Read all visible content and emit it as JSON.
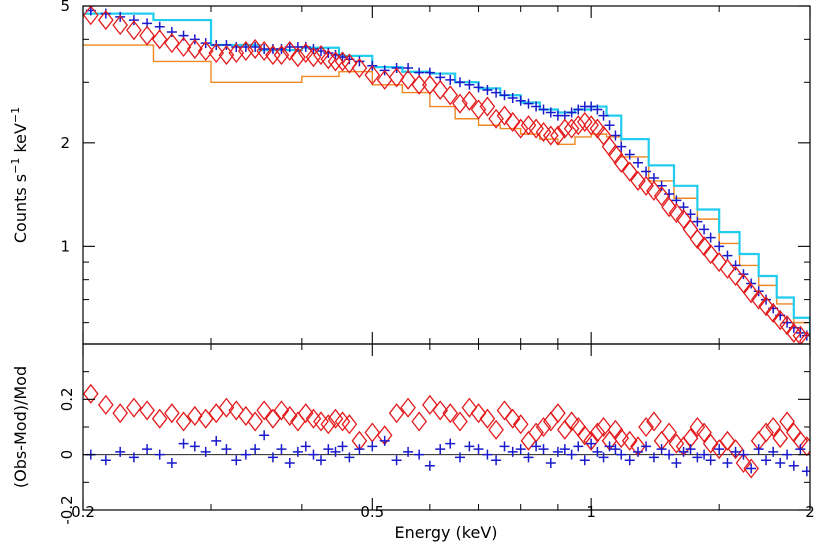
{
  "colors": {
    "data_red": "#e41a1c",
    "data_blue": "#1a1acc",
    "model_cyan": "#22ccee",
    "model_orange": "#ee8822",
    "axes": "#000000"
  },
  "chart_data": [
    {
      "panel": "spectrum",
      "type": "scatter",
      "xscale": "log",
      "yscale": "log",
      "xlim": [
        0.2,
        2.0
      ],
      "ylim": [
        0.52,
        5.0
      ],
      "ylabel": {
        "main": "Counts s",
        "exp1": "−1",
        "mid": " keV",
        "exp2": "−1"
      },
      "ytick_values": [
        1,
        2,
        5
      ],
      "ytick_labels": [
        "1",
        "2",
        "5"
      ],
      "x": [
        0.205,
        0.215,
        0.225,
        0.235,
        0.245,
        0.255,
        0.265,
        0.275,
        0.285,
        0.295,
        0.305,
        0.315,
        0.325,
        0.335,
        0.345,
        0.355,
        0.365,
        0.375,
        0.385,
        0.395,
        0.405,
        0.415,
        0.425,
        0.435,
        0.445,
        0.455,
        0.465,
        0.48,
        0.5,
        0.52,
        0.54,
        0.56,
        0.58,
        0.6,
        0.62,
        0.64,
        0.66,
        0.68,
        0.7,
        0.72,
        0.74,
        0.76,
        0.78,
        0.8,
        0.82,
        0.84,
        0.86,
        0.88,
        0.9,
        0.92,
        0.94,
        0.96,
        0.98,
        1.0,
        1.02,
        1.04,
        1.06,
        1.08,
        1.1,
        1.13,
        1.16,
        1.19,
        1.22,
        1.25,
        1.28,
        1.31,
        1.34,
        1.37,
        1.4,
        1.43,
        1.46,
        1.5,
        1.54,
        1.58,
        1.62,
        1.66,
        1.7,
        1.74,
        1.78,
        1.82,
        1.86,
        1.9,
        1.94,
        1.98
      ],
      "series": [
        {
          "values": [
            4.85,
            4.75,
            4.65,
            4.55,
            4.45,
            4.35,
            4.2,
            4.1,
            4.0,
            3.9,
            3.85,
            3.85,
            3.8,
            3.8,
            3.8,
            3.75,
            3.75,
            3.75,
            3.8,
            3.8,
            3.8,
            3.75,
            3.7,
            3.65,
            3.6,
            3.55,
            3.5,
            3.45,
            3.35,
            3.25,
            3.3,
            3.3,
            3.2,
            3.2,
            3.1,
            3.05,
            3.0,
            2.95,
            2.9,
            2.85,
            2.8,
            2.75,
            2.7,
            2.65,
            2.6,
            2.55,
            2.5,
            2.45,
            2.4,
            2.4,
            2.45,
            2.5,
            2.55,
            2.55,
            2.5,
            2.4,
            2.25,
            2.1,
            1.95,
            1.85,
            1.75,
            1.65,
            1.58,
            1.5,
            1.42,
            1.36,
            1.3,
            1.24,
            1.18,
            1.12,
            1.06,
            1.0,
            0.94,
            0.88,
            0.83,
            0.78,
            0.74,
            0.7,
            0.66,
            0.63,
            0.6,
            0.58,
            0.56,
            0.55
          ],
          "marker": "plus",
          "color_key": "data_blue"
        },
        {
          "values": [
            4.7,
            4.55,
            4.4,
            4.25,
            4.1,
            4.0,
            3.9,
            3.8,
            3.75,
            3.7,
            3.65,
            3.6,
            3.65,
            3.7,
            3.75,
            3.7,
            3.6,
            3.6,
            3.7,
            3.55,
            3.65,
            3.55,
            3.6,
            3.5,
            3.45,
            3.45,
            3.4,
            3.3,
            3.15,
            3.05,
            3.1,
            3.05,
            2.95,
            2.95,
            2.85,
            2.75,
            2.6,
            2.65,
            2.5,
            2.55,
            2.35,
            2.4,
            2.3,
            2.2,
            2.25,
            2.2,
            2.15,
            2.1,
            2.1,
            2.2,
            2.2,
            2.25,
            2.3,
            2.25,
            2.2,
            2.1,
            1.95,
            1.85,
            1.75,
            1.65,
            1.55,
            1.5,
            1.45,
            1.4,
            1.3,
            1.25,
            1.2,
            1.12,
            1.05,
            1.0,
            0.95,
            0.9,
            0.86,
            0.82,
            0.78,
            0.73,
            0.7,
            0.67,
            0.64,
            0.61,
            0.59,
            0.56,
            0.55,
            0.53
          ],
          "marker": "diamond",
          "color_key": "data_red"
        }
      ],
      "model_cyan": [
        [
          0.2,
          4.75
        ],
        [
          0.25,
          4.55
        ],
        [
          0.3,
          3.85
        ],
        [
          0.35,
          3.72
        ],
        [
          0.4,
          3.78
        ],
        [
          0.45,
          3.58
        ],
        [
          0.5,
          3.32
        ],
        [
          0.55,
          3.22
        ],
        [
          0.6,
          3.18
        ],
        [
          0.65,
          3.0
        ],
        [
          0.7,
          2.88
        ],
        [
          0.75,
          2.75
        ],
        [
          0.8,
          2.62
        ],
        [
          0.85,
          2.5
        ],
        [
          0.9,
          2.45
        ],
        [
          0.95,
          2.5
        ],
        [
          1.0,
          2.55
        ],
        [
          1.05,
          2.4
        ],
        [
          1.1,
          2.05
        ],
        [
          1.2,
          1.72
        ],
        [
          1.3,
          1.5
        ],
        [
          1.4,
          1.28
        ],
        [
          1.5,
          1.1
        ],
        [
          1.6,
          0.95
        ],
        [
          1.7,
          0.82
        ],
        [
          1.8,
          0.71
        ],
        [
          1.9,
          0.62
        ],
        [
          2.0,
          0.54
        ]
      ],
      "model_orange": [
        [
          0.2,
          3.85
        ],
        [
          0.25,
          3.45
        ],
        [
          0.3,
          3.0
        ],
        [
          0.35,
          3.0
        ],
        [
          0.4,
          3.12
        ],
        [
          0.45,
          3.22
        ],
        [
          0.5,
          2.95
        ],
        [
          0.55,
          2.8
        ],
        [
          0.6,
          2.55
        ],
        [
          0.65,
          2.35
        ],
        [
          0.7,
          2.25
        ],
        [
          0.75,
          2.2
        ],
        [
          0.8,
          2.12
        ],
        [
          0.85,
          2.05
        ],
        [
          0.9,
          1.98
        ],
        [
          0.95,
          2.08
        ],
        [
          1.0,
          2.12
        ],
        [
          1.05,
          2.08
        ],
        [
          1.1,
          1.82
        ],
        [
          1.2,
          1.55
        ],
        [
          1.3,
          1.38
        ],
        [
          1.4,
          1.2
        ],
        [
          1.5,
          1.02
        ],
        [
          1.6,
          0.88
        ],
        [
          1.7,
          0.77
        ],
        [
          1.8,
          0.68
        ],
        [
          1.9,
          0.6
        ],
        [
          2.0,
          0.52
        ]
      ]
    },
    {
      "panel": "residuals",
      "type": "scatter",
      "xscale": "log",
      "xlim": [
        0.2,
        2.0
      ],
      "ylim": [
        -0.2,
        0.4
      ],
      "xlabel": "Energy (keV)",
      "ylabel": "(Obs-Mod)/Mod",
      "ytick_values": [
        -0.2,
        0,
        0.2
      ],
      "ytick_labels": [
        "-0.2",
        "0",
        "0.2"
      ],
      "xtick_values": [
        0.2,
        0.5,
        1,
        2
      ],
      "xtick_labels": [
        "0.2",
        "0.5",
        "1",
        "2"
      ],
      "x": [
        0.205,
        0.215,
        0.225,
        0.235,
        0.245,
        0.255,
        0.265,
        0.275,
        0.285,
        0.295,
        0.305,
        0.315,
        0.325,
        0.335,
        0.345,
        0.355,
        0.365,
        0.375,
        0.385,
        0.395,
        0.405,
        0.415,
        0.425,
        0.435,
        0.445,
        0.455,
        0.465,
        0.48,
        0.5,
        0.52,
        0.54,
        0.56,
        0.58,
        0.6,
        0.62,
        0.64,
        0.66,
        0.68,
        0.7,
        0.72,
        0.74,
        0.76,
        0.78,
        0.8,
        0.82,
        0.84,
        0.86,
        0.88,
        0.9,
        0.92,
        0.94,
        0.96,
        0.98,
        1.0,
        1.02,
        1.04,
        1.06,
        1.08,
        1.1,
        1.13,
        1.16,
        1.19,
        1.22,
        1.25,
        1.28,
        1.31,
        1.34,
        1.37,
        1.4,
        1.43,
        1.46,
        1.5,
        1.54,
        1.58,
        1.62,
        1.66,
        1.7,
        1.74,
        1.78,
        1.82,
        1.86,
        1.9,
        1.94,
        1.98
      ],
      "series": [
        {
          "values": [
            0.22,
            0.18,
            0.15,
            0.17,
            0.16,
            0.13,
            0.15,
            0.12,
            0.14,
            0.13,
            0.15,
            0.17,
            0.16,
            0.14,
            0.12,
            0.16,
            0.13,
            0.16,
            0.14,
            0.12,
            0.15,
            0.13,
            0.12,
            0.11,
            0.13,
            0.12,
            0.11,
            0.05,
            0.08,
            0.07,
            0.15,
            0.17,
            0.12,
            0.18,
            0.16,
            0.15,
            0.12,
            0.17,
            0.15,
            0.13,
            0.09,
            0.16,
            0.13,
            0.11,
            0.05,
            0.08,
            0.1,
            0.12,
            0.15,
            0.09,
            0.12,
            0.1,
            0.07,
            0.05,
            0.08,
            0.1,
            0.05,
            0.09,
            0.06,
            0.05,
            0.03,
            0.1,
            0.12,
            0.05,
            0.08,
            0.04,
            0.03,
            0.06,
            0.1,
            0.08,
            0.04,
            0.02,
            0.05,
            0.02,
            -0.03,
            -0.05,
            0.05,
            0.08,
            0.1,
            0.06,
            0.12,
            0.08,
            0.05,
            0.03
          ],
          "marker": "diamond",
          "color_key": "data_red"
        },
        {
          "values": [
            0.0,
            -0.02,
            0.01,
            -0.01,
            0.02,
            0.0,
            -0.03,
            0.04,
            0.03,
            0.01,
            0.05,
            0.02,
            -0.02,
            0.0,
            0.02,
            0.07,
            -0.01,
            0.02,
            -0.03,
            0.01,
            0.03,
            0.0,
            -0.02,
            0.02,
            0.01,
            0.03,
            -0.01,
            0.02,
            0.03,
            0.05,
            -0.02,
            0.01,
            0.0,
            -0.04,
            0.02,
            0.04,
            -0.01,
            0.03,
            0.02,
            0.0,
            -0.02,
            0.03,
            0.01,
            0.02,
            -0.01,
            0.03,
            0.02,
            -0.03,
            0.01,
            0.02,
            0.0,
            0.03,
            -0.02,
            0.04,
            0.01,
            -0.01,
            0.03,
            0.02,
            0.0,
            -0.02,
            0.01,
            0.03,
            -0.01,
            0.02,
            0.0,
            -0.03,
            0.01,
            0.02,
            -0.01,
            0.0,
            -0.02,
            0.02,
            -0.03,
            0.01,
            0.0,
            -0.05,
            0.02,
            -0.02,
            0.01,
            -0.03,
            0.0,
            -0.04,
            0.02,
            -0.06
          ],
          "marker": "plus",
          "color_key": "data_blue"
        }
      ]
    }
  ]
}
